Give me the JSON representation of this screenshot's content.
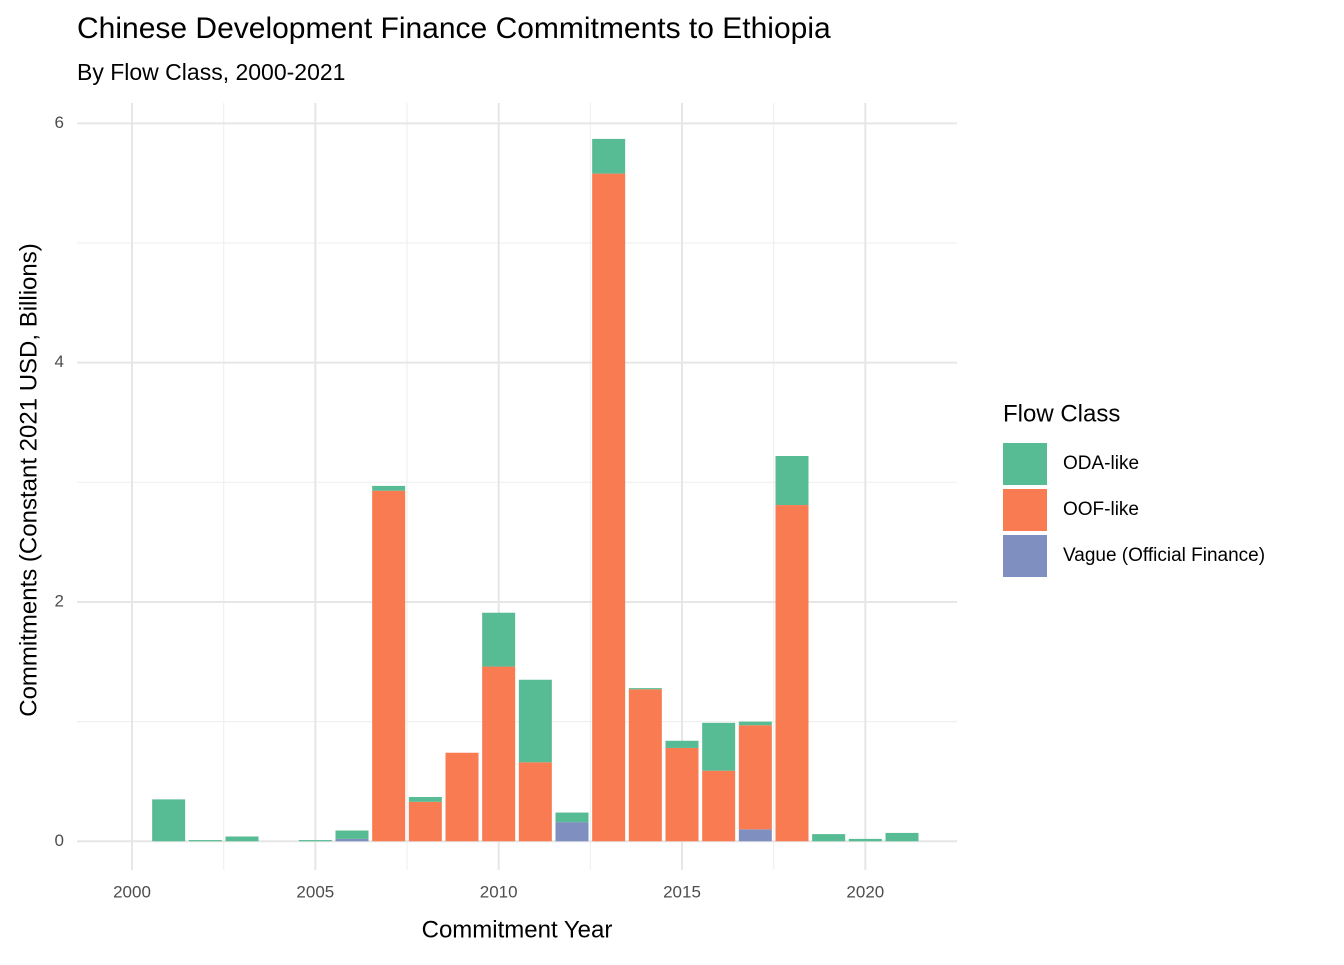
{
  "chart_data": {
    "type": "stacked_bar",
    "title": "Chinese Development Finance Commitments to Ethiopia",
    "subtitle": "By Flow Class, 2000-2021",
    "x_label": "Commitment Year",
    "y_label": "Commitments (Constant 2021 USD, Billions)",
    "legend_title": "Flow Class",
    "legend_position": "right",
    "grid": true,
    "x": [
      2001,
      2002,
      2003,
      2004,
      2005,
      2006,
      2007,
      2008,
      2009,
      2010,
      2011,
      2012,
      2013,
      2014,
      2015,
      2016,
      2017,
      2018,
      2019,
      2020,
      2021
    ],
    "series": [
      {
        "name": "ODA-like",
        "color": "#57bb93",
        "values": [
          0.35,
          0.01,
          0.04,
          0,
          0.01,
          0.07,
          0.04,
          0.04,
          0,
          0.45,
          0.69,
          0.08,
          0.29,
          0.01,
          0.06,
          0.4,
          0.03,
          0.41,
          0.06,
          0.02,
          0.07
        ]
      },
      {
        "name": "OOF-like",
        "color": "#f97b51",
        "values": [
          0,
          0,
          0,
          0,
          0,
          0,
          2.93,
          0.33,
          0.74,
          1.46,
          0.66,
          0,
          5.58,
          1.27,
          0.78,
          0.59,
          0.87,
          2.81,
          0,
          0,
          0
        ]
      },
      {
        "name": "Vague (Official Finance)",
        "color": "#7e8fc0",
        "values": [
          0,
          0,
          0,
          0,
          0,
          0.02,
          0,
          0,
          0,
          0,
          0,
          0.16,
          0,
          0,
          0,
          0,
          0.1,
          0,
          0,
          0,
          0
        ]
      }
    ],
    "xlim": [
      1998.5,
      2022.5
    ],
    "xticks": [
      2000,
      2005,
      2010,
      2015,
      2020
    ],
    "ylim": [
      -0.24,
      6.17
    ],
    "yticks": [
      0,
      2,
      4,
      6
    ]
  }
}
